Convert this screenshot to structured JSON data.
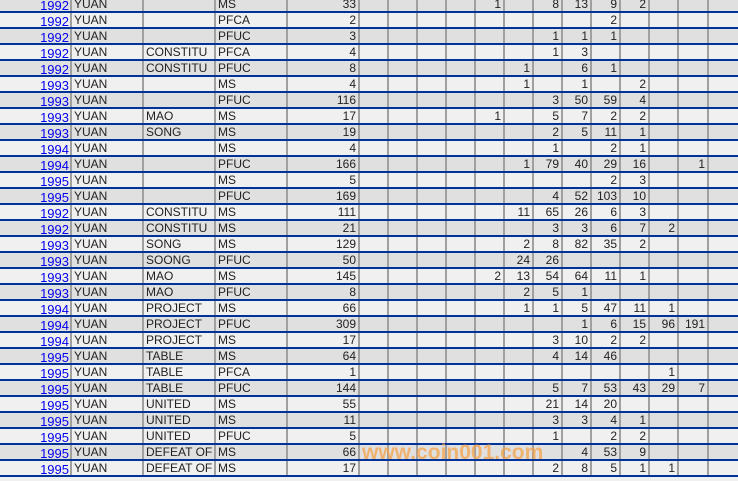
{
  "watermark": "www.coin001.com",
  "colors": {
    "row_border": "#003399",
    "col_border": "#a0a0a0",
    "row_odd": "#e0e0e0",
    "row_even": "#f0f0f0",
    "year_link": "#0000ee",
    "watermark": "#f5a34a"
  },
  "rows": [
    {
      "year": "1992",
      "name": "YUAN",
      "word": "",
      "type": "MS",
      "count": "33",
      "cols": [
        "",
        "",
        "",
        "",
        "1",
        "",
        "8",
        "13",
        "9",
        "2",
        "",
        "",
        ""
      ]
    },
    {
      "year": "1992",
      "name": "YUAN",
      "word": "",
      "type": "PFCA",
      "count": "2",
      "cols": [
        "",
        "",
        "",
        "",
        "",
        "",
        "",
        "",
        "2",
        "",
        "",
        "",
        ""
      ]
    },
    {
      "year": "1992",
      "name": "YUAN",
      "word": "",
      "type": "PFUC",
      "count": "3",
      "cols": [
        "",
        "",
        "",
        "",
        "",
        "",
        "1",
        "1",
        "1",
        "",
        "",
        "",
        ""
      ]
    },
    {
      "year": "1992",
      "name": "YUAN",
      "word": "CONSTITU",
      "type": "PFCA",
      "count": "4",
      "cols": [
        "",
        "",
        "",
        "",
        "",
        "",
        "1",
        "3",
        "",
        "",
        "",
        "",
        ""
      ]
    },
    {
      "year": "1992",
      "name": "YUAN",
      "word": "CONSTITU",
      "type": "PFUC",
      "count": "8",
      "cols": [
        "",
        "",
        "",
        "",
        "",
        "1",
        "",
        "6",
        "1",
        "",
        "",
        "",
        ""
      ]
    },
    {
      "year": "1993",
      "name": "YUAN",
      "word": "",
      "type": "MS",
      "count": "4",
      "cols": [
        "",
        "",
        "",
        "",
        "",
        "1",
        "",
        "1",
        "",
        "2",
        "",
        "",
        ""
      ]
    },
    {
      "year": "1993",
      "name": "YUAN",
      "word": "",
      "type": "PFUC",
      "count": "116",
      "cols": [
        "",
        "",
        "",
        "",
        "",
        "",
        "3",
        "50",
        "59",
        "4",
        "",
        "",
        ""
      ]
    },
    {
      "year": "1993",
      "name": "YUAN",
      "word": "MAO",
      "type": "MS",
      "count": "17",
      "cols": [
        "",
        "",
        "",
        "",
        "1",
        "",
        "5",
        "7",
        "2",
        "2",
        "",
        "",
        ""
      ]
    },
    {
      "year": "1993",
      "name": "YUAN",
      "word": "SONG",
      "type": "MS",
      "count": "19",
      "cols": [
        "",
        "",
        "",
        "",
        "",
        "",
        "2",
        "5",
        "11",
        "1",
        "",
        "",
        ""
      ]
    },
    {
      "year": "1994",
      "name": "YUAN",
      "word": "",
      "type": "MS",
      "count": "4",
      "cols": [
        "",
        "",
        "",
        "",
        "",
        "",
        "1",
        "",
        "2",
        "1",
        "",
        "",
        ""
      ]
    },
    {
      "year": "1994",
      "name": "YUAN",
      "word": "",
      "type": "PFUC",
      "count": "166",
      "cols": [
        "",
        "",
        "",
        "",
        "",
        "1",
        "79",
        "40",
        "29",
        "16",
        "",
        "1",
        ""
      ]
    },
    {
      "year": "1995",
      "name": "YUAN",
      "word": "",
      "type": "MS",
      "count": "5",
      "cols": [
        "",
        "",
        "",
        "",
        "",
        "",
        "",
        "",
        "2",
        "3",
        "",
        "",
        ""
      ]
    },
    {
      "year": "1995",
      "name": "YUAN",
      "word": "",
      "type": "PFUC",
      "count": "169",
      "cols": [
        "",
        "",
        "",
        "",
        "",
        "",
        "4",
        "52",
        "103",
        "10",
        "",
        "",
        ""
      ]
    },
    {
      "year": "1992",
      "name": "YUAN",
      "word": "CONSTITU",
      "type": "MS",
      "count": "111",
      "cols": [
        "",
        "",
        "",
        "",
        "",
        "11",
        "65",
        "26",
        "6",
        "3",
        "",
        "",
        ""
      ]
    },
    {
      "year": "1992",
      "name": "YUAN",
      "word": "CONSTITU",
      "type": "MS",
      "count": "21",
      "cols": [
        "",
        "",
        "",
        "",
        "",
        "",
        "3",
        "3",
        "6",
        "7",
        "2",
        "",
        ""
      ]
    },
    {
      "year": "1993",
      "name": "YUAN",
      "word": "SONG",
      "type": "MS",
      "count": "129",
      "cols": [
        "",
        "",
        "",
        "",
        "",
        "2",
        "8",
        "82",
        "35",
        "2",
        "",
        "",
        ""
      ]
    },
    {
      "year": "1993",
      "name": "YUAN",
      "word": "SOONG",
      "type": "PFUC",
      "count": "50",
      "cols": [
        "",
        "",
        "",
        "",
        "",
        "24",
        "26",
        "",
        "",
        "",
        "",
        "",
        ""
      ]
    },
    {
      "year": "1993",
      "name": "YUAN",
      "word": "MAO",
      "type": "MS",
      "count": "145",
      "cols": [
        "",
        "",
        "",
        "",
        "2",
        "13",
        "54",
        "64",
        "11",
        "1",
        "",
        "",
        ""
      ]
    },
    {
      "year": "1993",
      "name": "YUAN",
      "word": "MAO",
      "type": "PFUC",
      "count": "8",
      "cols": [
        "",
        "",
        "",
        "",
        "",
        "2",
        "5",
        "1",
        "",
        "",
        "",
        "",
        ""
      ]
    },
    {
      "year": "1994",
      "name": "YUAN",
      "word": "PROJECT",
      "type": "MS",
      "count": "66",
      "cols": [
        "",
        "",
        "",
        "",
        "",
        "1",
        "1",
        "5",
        "47",
        "11",
        "1",
        "",
        ""
      ]
    },
    {
      "year": "1994",
      "name": "YUAN",
      "word": "PROJECT",
      "type": "PFUC",
      "count": "309",
      "cols": [
        "",
        "",
        "",
        "",
        "",
        "",
        "",
        "1",
        "6",
        "15",
        "96",
        "191",
        ""
      ]
    },
    {
      "year": "1994",
      "name": "YUAN",
      "word": "PROJECT",
      "type": "MS",
      "count": "17",
      "cols": [
        "",
        "",
        "",
        "",
        "",
        "",
        "3",
        "10",
        "2",
        "2",
        "",
        "",
        ""
      ]
    },
    {
      "year": "1995",
      "name": "YUAN",
      "word": "TABLE",
      "type": "MS",
      "count": "64",
      "cols": [
        "",
        "",
        "",
        "",
        "",
        "",
        "4",
        "14",
        "46",
        "",
        "",
        "",
        ""
      ]
    },
    {
      "year": "1995",
      "name": "YUAN",
      "word": "TABLE",
      "type": "PFCA",
      "count": "1",
      "cols": [
        "",
        "",
        "",
        "",
        "",
        "",
        "",
        "",
        "",
        "",
        "1",
        "",
        ""
      ]
    },
    {
      "year": "1995",
      "name": "YUAN",
      "word": "TABLE",
      "type": "PFUC",
      "count": "144",
      "cols": [
        "",
        "",
        "",
        "",
        "",
        "",
        "5",
        "7",
        "53",
        "43",
        "29",
        "7",
        ""
      ]
    },
    {
      "year": "1995",
      "name": "YUAN",
      "word": "UNITED",
      "type": "MS",
      "count": "55",
      "cols": [
        "",
        "",
        "",
        "",
        "",
        "",
        "21",
        "14",
        "20",
        "",
        "",
        "",
        ""
      ]
    },
    {
      "year": "1995",
      "name": "YUAN",
      "word": "UNITED",
      "type": "MS",
      "count": "11",
      "cols": [
        "",
        "",
        "",
        "",
        "",
        "",
        "3",
        "3",
        "4",
        "1",
        "",
        "",
        ""
      ]
    },
    {
      "year": "1995",
      "name": "YUAN",
      "word": "UNITED",
      "type": "PFUC",
      "count": "5",
      "cols": [
        "",
        "",
        "",
        "",
        "",
        "",
        "1",
        "",
        "2",
        "2",
        "",
        "",
        ""
      ]
    },
    {
      "year": "1995",
      "name": "YUAN",
      "word": "DEFEAT OF",
      "type": "MS",
      "count": "66",
      "cols": [
        "",
        "",
        "",
        "",
        "",
        "",
        "",
        "4",
        "53",
        "9",
        "",
        "",
        ""
      ]
    },
    {
      "year": "1995",
      "name": "YUAN",
      "word": "DEFEAT OF",
      "type": "MS",
      "count": "17",
      "cols": [
        "",
        "",
        "",
        "",
        "",
        "",
        "2",
        "8",
        "5",
        "1",
        "1",
        "",
        ""
      ]
    }
  ]
}
